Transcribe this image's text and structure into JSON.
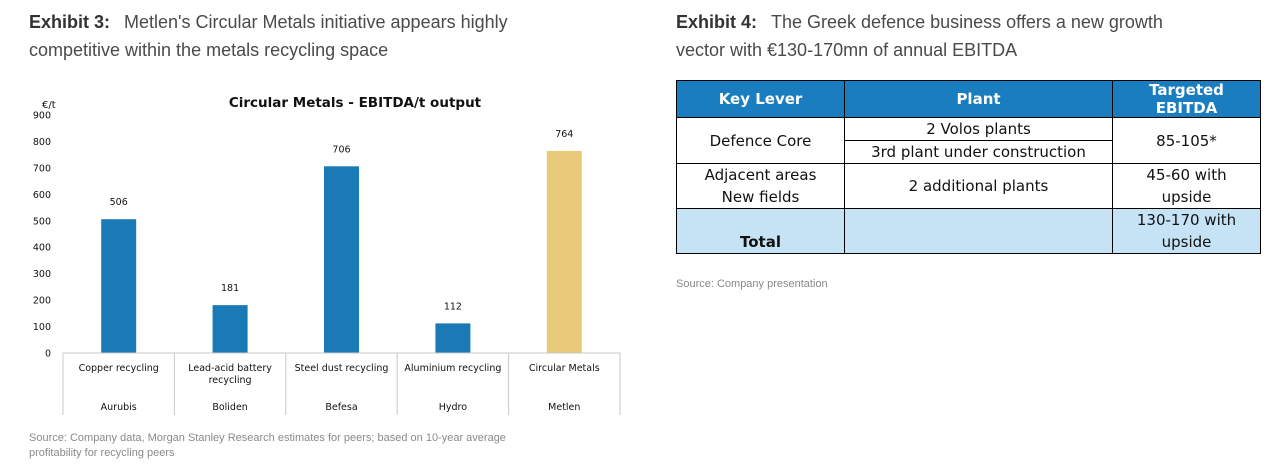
{
  "exhibit3": {
    "label": "Exhibit 3:",
    "title_line1": "Metlen's Circular Metals initiative appears highly",
    "title_line2": "competitive within the metals recycling space",
    "source_line1": "Source: Company data, Morgan Stanley Research estimates for peers; based on 10-year average",
    "source_line2": "profitability for recycling peers"
  },
  "chart_data": {
    "type": "bar",
    "title": "Circular Metals - EBITDA/t output",
    "ylabel": "€/t",
    "ylim": [
      0,
      900
    ],
    "yticks": [
      0,
      100,
      200,
      300,
      400,
      500,
      600,
      700,
      800,
      900
    ],
    "grid": false,
    "categories": [
      "Copper recycling",
      "Lead-acid battery recycling",
      "Steel dust recycling",
      "Aluminium recycling",
      "Circular Metals"
    ],
    "category_lines": [
      [
        "Copper recycling"
      ],
      [
        "Lead-acid battery",
        "recycling"
      ],
      [
        "Steel dust recycling"
      ],
      [
        "Aluminium recycling"
      ],
      [
        "Circular Metals"
      ]
    ],
    "companies": [
      "Aurubis",
      "Boliden",
      "Befesa",
      "Hydro",
      "Metlen"
    ],
    "values": [
      506,
      181,
      706,
      112,
      764
    ],
    "colors": [
      "#1a7ab5",
      "#1a7ab5",
      "#1a7ab5",
      "#1a7ab5",
      "#e9c97a"
    ]
  },
  "exhibit4": {
    "label": "Exhibit 4:",
    "title_line1": "The Greek defence business offers a new growth",
    "title_line2": "vector with €130-170mn of annual EBITDA",
    "source": "Source: Company presentation",
    "table": {
      "headers": [
        "Key Lever",
        "Plant",
        "Targeted EBITDA"
      ],
      "defence_core": "Defence Core",
      "volos": "2 Volos plants",
      "third_plant": "3rd plant under construction",
      "defence_ebitda": "85-105*",
      "adjacent": "Adjacent areas",
      "new_fields": "New fields",
      "additional_plants": "2 additional plants",
      "adj_ebitda_1": "45-60 with",
      "adj_ebitda_2": "upside",
      "total_label": "Total",
      "total_ebitda_1": "130-170 with",
      "total_ebitda_2": "upside"
    }
  }
}
